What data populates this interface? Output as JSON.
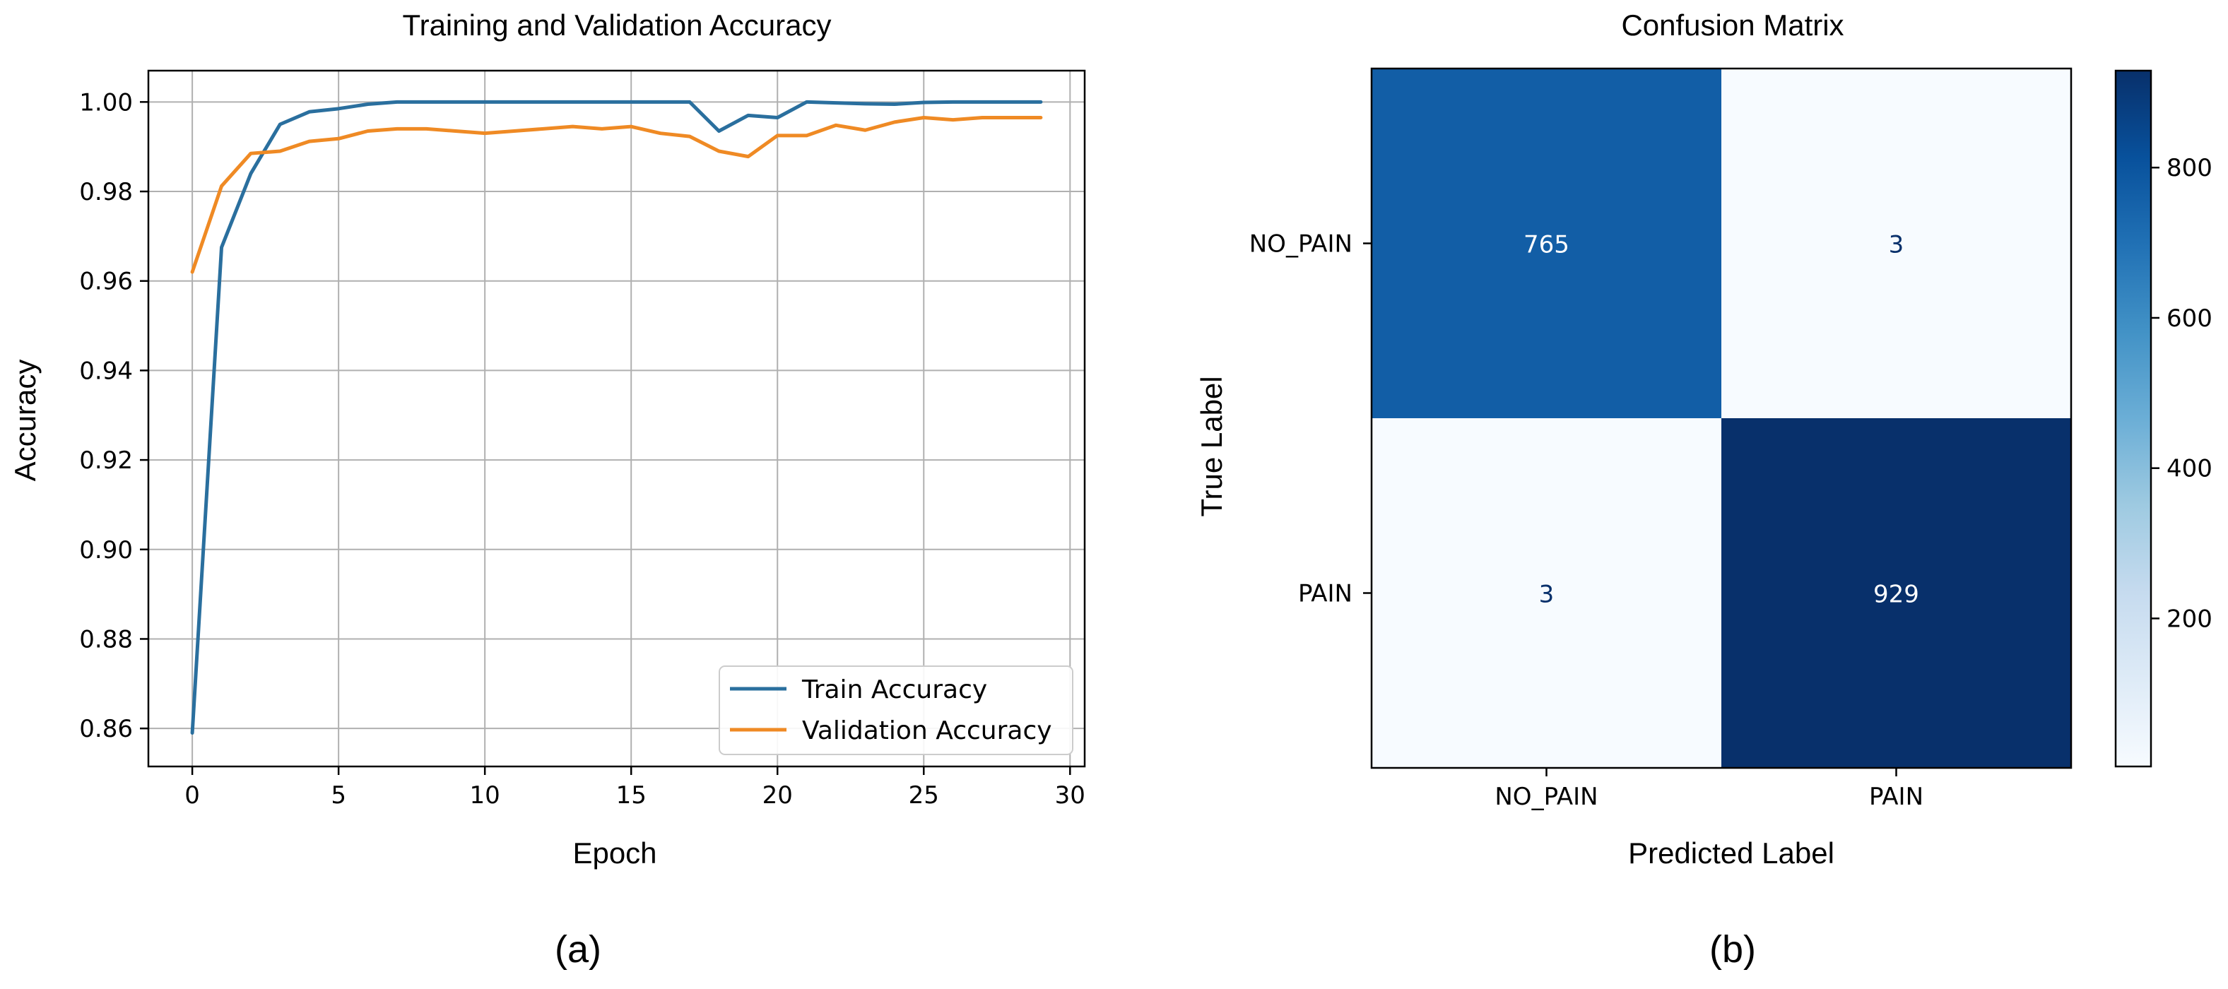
{
  "chart_data": [
    {
      "type": "line",
      "title": "Training and Validation Accuracy",
      "xlabel": "Epoch",
      "ylabel": "Accuracy",
      "xlim": [
        -1.5,
        30.5
      ],
      "ylim": [
        0.8515,
        1.007
      ],
      "x_ticks": [
        0,
        5,
        10,
        15,
        20,
        25,
        30
      ],
      "x_tick_labels": [
        "0",
        "5",
        "10",
        "15",
        "20",
        "25",
        "30"
      ],
      "y_ticks": [
        0.86,
        0.88,
        0.9,
        0.92,
        0.94,
        0.96,
        0.98,
        1.0
      ],
      "y_tick_labels": [
        "0.86",
        "0.88",
        "0.90",
        "0.92",
        "0.94",
        "0.96",
        "0.98",
        "1.00"
      ],
      "grid": true,
      "legend_position": "lower-right",
      "x": [
        0,
        1,
        2,
        3,
        4,
        5,
        6,
        7,
        8,
        9,
        10,
        11,
        12,
        13,
        14,
        15,
        16,
        17,
        18,
        19,
        20,
        21,
        22,
        23,
        24,
        25,
        26,
        27,
        28,
        29
      ],
      "series": [
        {
          "name": "Train Accuracy",
          "color": "#2a6f9e",
          "values": [
            0.859,
            0.9675,
            0.984,
            0.995,
            0.9978,
            0.9985,
            0.9995,
            1.0,
            1.0,
            1.0,
            1.0,
            1.0,
            1.0,
            1.0,
            1.0,
            1.0,
            1.0,
            1.0,
            0.9935,
            0.997,
            0.9965,
            1.0,
            0.9998,
            0.9996,
            0.9995,
            0.9999,
            1.0,
            1.0,
            1.0,
            1.0
          ]
        },
        {
          "name": "Validation Accuracy",
          "color": "#ef8a24",
          "values": [
            0.962,
            0.9812,
            0.9885,
            0.989,
            0.9912,
            0.9918,
            0.9935,
            0.994,
            0.994,
            0.9935,
            0.993,
            0.9935,
            0.994,
            0.9945,
            0.994,
            0.9945,
            0.993,
            0.9923,
            0.989,
            0.9878,
            0.9925,
            0.9925,
            0.9948,
            0.9937,
            0.9955,
            0.9965,
            0.996,
            0.9965,
            0.9965,
            0.9965
          ]
        }
      ],
      "panel_label": "(a)"
    },
    {
      "type": "heatmap",
      "title": "Confusion Matrix",
      "xlabel": "Predicted Label",
      "ylabel": "True Label",
      "x_categories": [
        "NO_PAIN",
        "PAIN"
      ],
      "y_categories": [
        "NO_PAIN",
        "PAIN"
      ],
      "values": [
        [
          765,
          3
        ],
        [
          3,
          929
        ]
      ],
      "value_labels": [
        [
          "765",
          "3"
        ],
        [
          "3",
          "929"
        ]
      ],
      "colormap": "Blues",
      "colorbar_range": [
        3,
        929
      ],
      "colorbar_ticks": [
        200,
        400,
        600,
        800
      ],
      "colorbar_tick_labels": [
        "200",
        "400",
        "600",
        "800"
      ],
      "panel_label": "(b)"
    }
  ]
}
